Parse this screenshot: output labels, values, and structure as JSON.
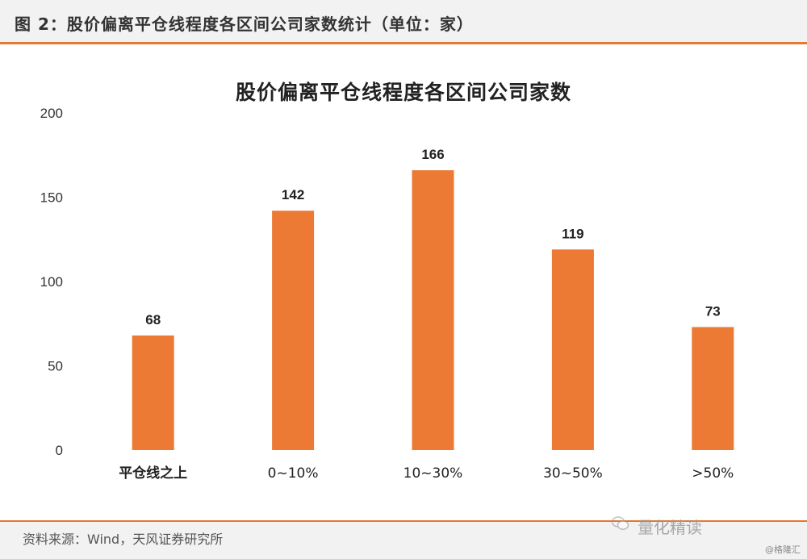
{
  "figure": {
    "caption": "图 2：股价偏离平仓线程度各区间公司家数统计（单位：家）",
    "source": "资料来源：Wind，天风证券研究所",
    "watermark_main": "量化精读",
    "watermark_corner": "@格隆汇"
  },
  "colors": {
    "bar": "#ec7a34",
    "accent_rule": "#e4782f",
    "text": "#222222"
  },
  "icons": {
    "wechat": "wechat-icon"
  },
  "chart_data": {
    "type": "bar",
    "title": "股价偏离平仓线程度各区间公司家数",
    "categories": [
      "平仓线之上",
      "0~10%",
      "10~30%",
      "30~50%",
      ">50%"
    ],
    "values": [
      68,
      142,
      166,
      119,
      73
    ],
    "xlabel": "",
    "ylabel": "",
    "ylim": [
      0,
      200
    ],
    "yticks": [
      0,
      50,
      100,
      150,
      200
    ],
    "grid": false,
    "legend": "none",
    "data_labels": true
  }
}
